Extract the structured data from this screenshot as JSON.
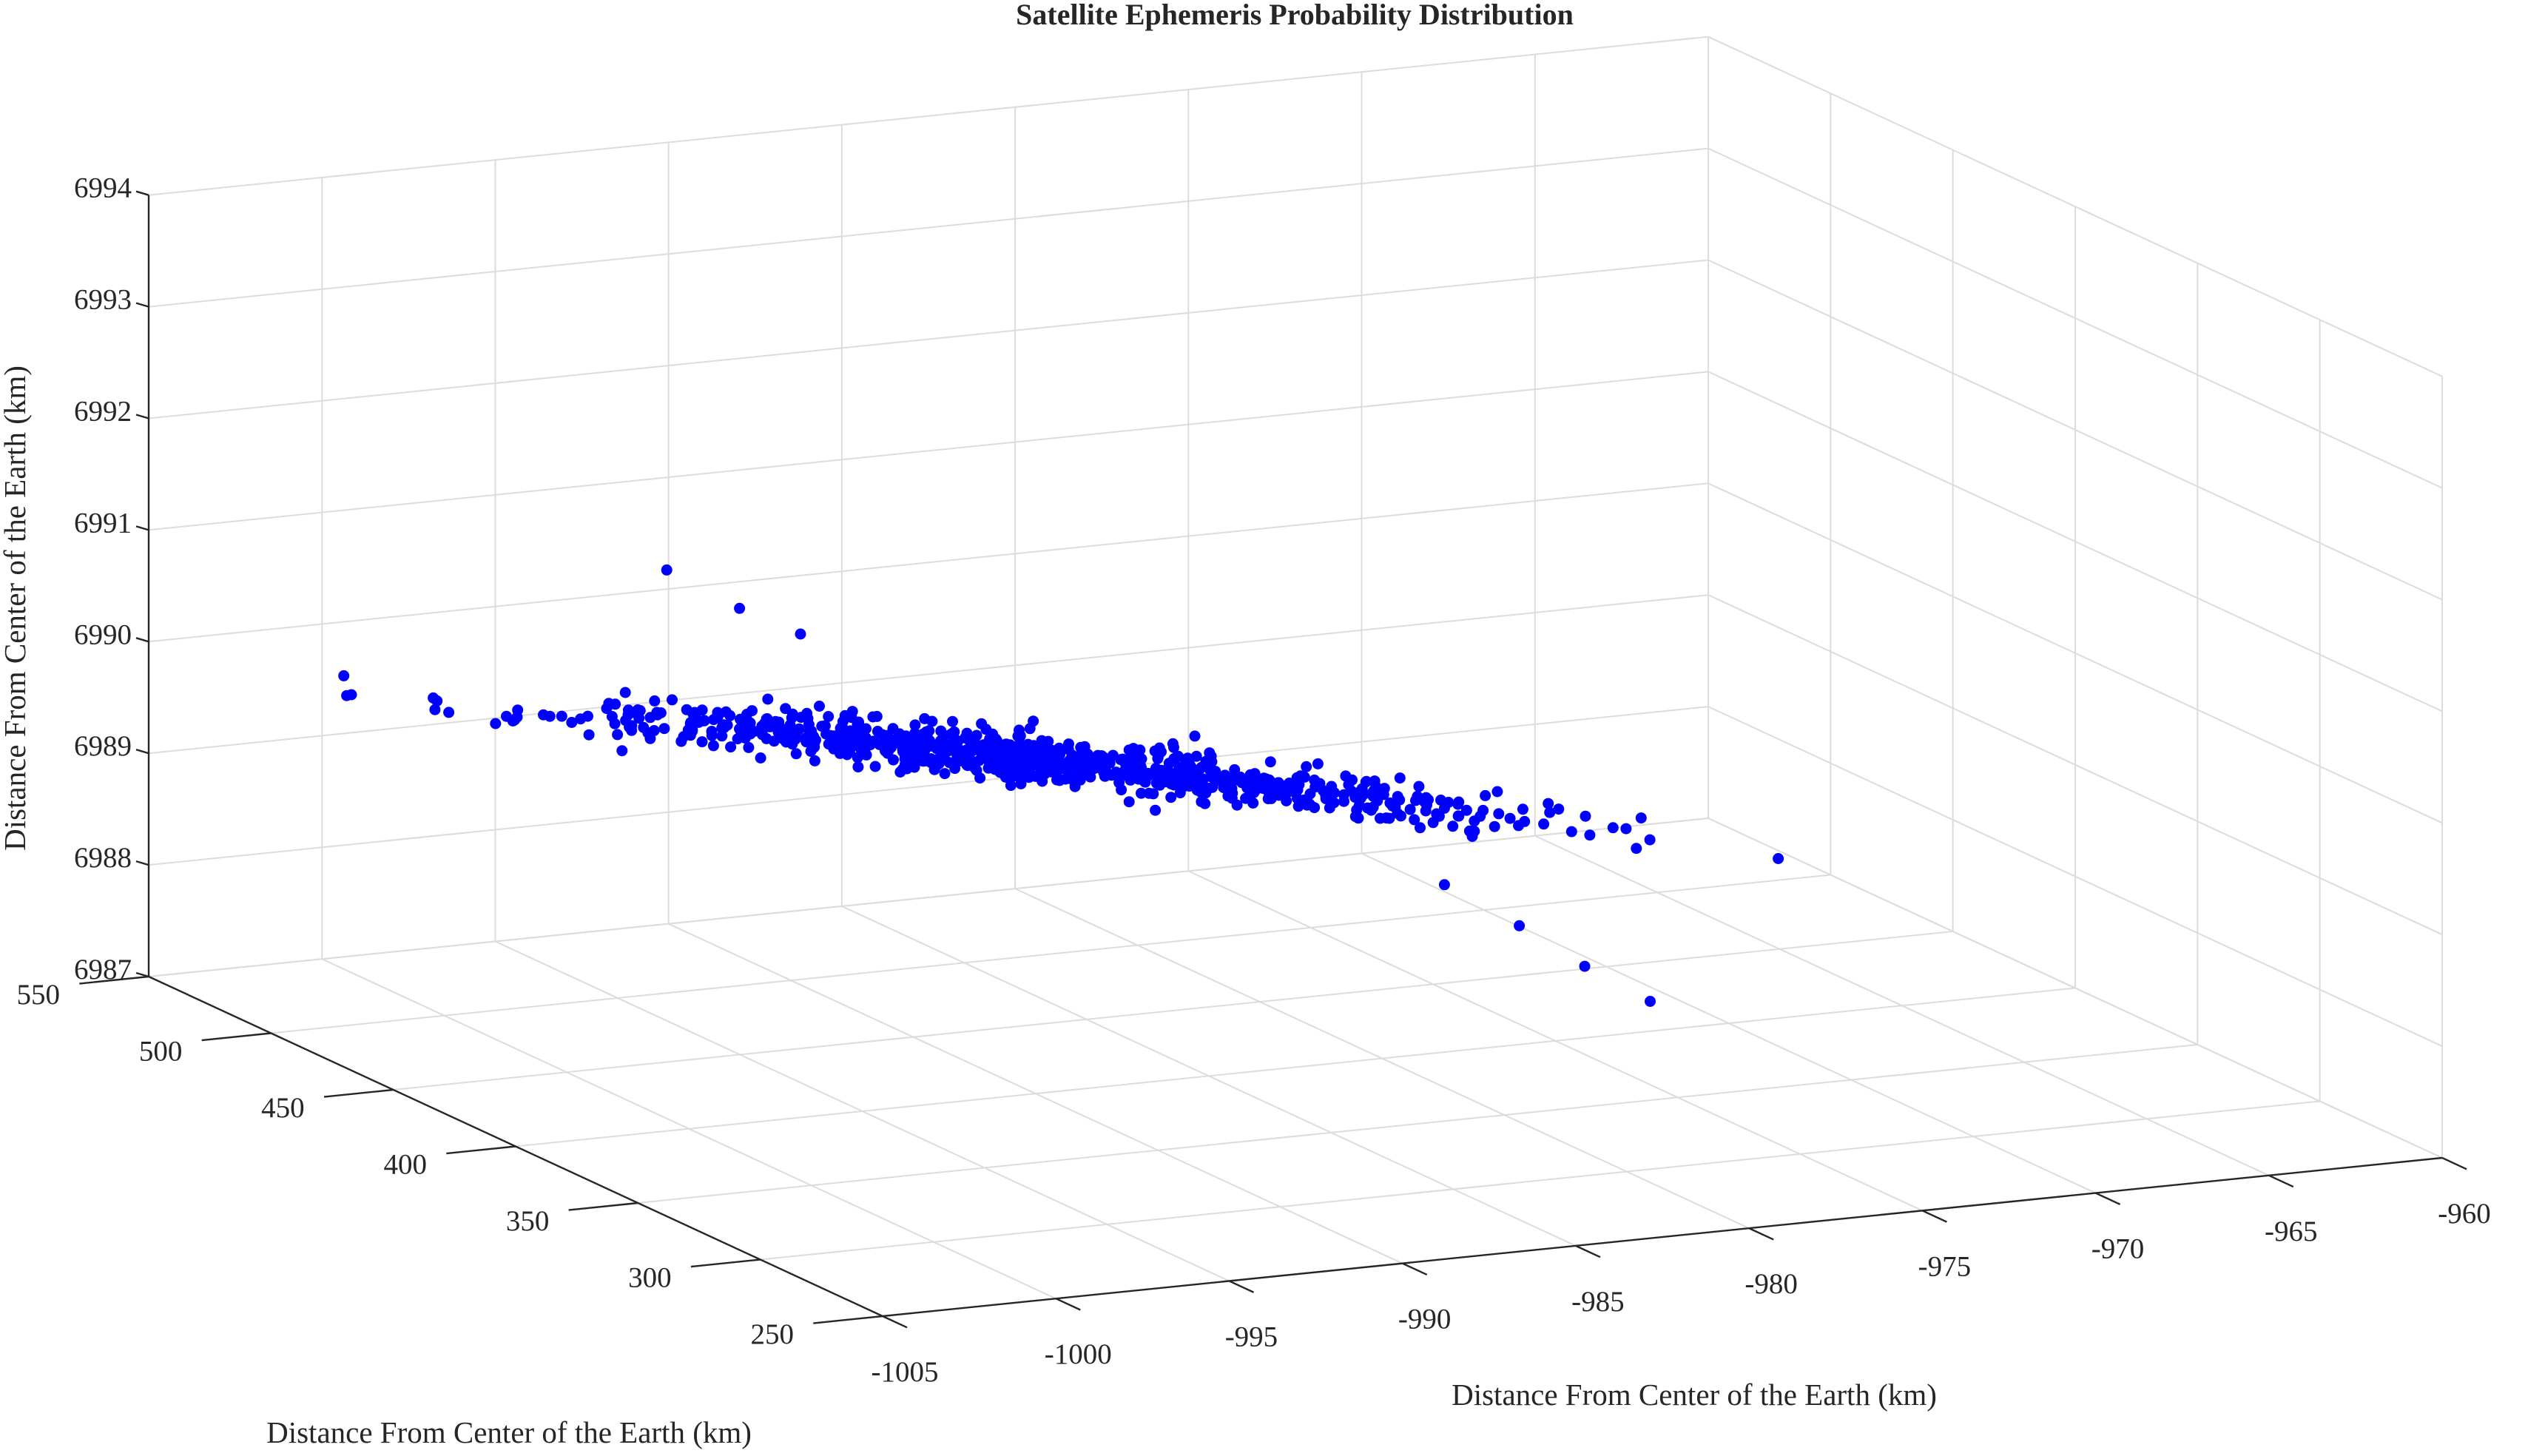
{
  "chart_data": {
    "type": "scatter",
    "title": "Satellite Ephemeris Probability Distribution",
    "xlabel": "Distance From Center of the Earth (km)",
    "ylabel": "Distance From Center of the Earth (km)",
    "zlabel": "Distance From Center of the Earth (km)",
    "xlim": [
      -1005,
      -960
    ],
    "ylim": [
      250,
      550
    ],
    "zlim": [
      6987,
      6994
    ],
    "xticks": [
      "-1005",
      "-1000",
      "-995",
      "-990",
      "-985",
      "-980",
      "-975",
      "-970",
      "-965",
      "-960"
    ],
    "yticks": [
      "250",
      "300",
      "350",
      "400",
      "450",
      "500",
      "550"
    ],
    "zticks": [
      "6987",
      "6988",
      "6989",
      "6990",
      "6991",
      "6992",
      "6993",
      "6994"
    ],
    "grid": true,
    "marker_color": "#0000ff",
    "distribution": {
      "point_count": 900,
      "seed": 7,
      "mean": [
        -990.0,
        400.0,
        6990.0
      ],
      "principal_axis": [
        13.5,
        -84.0,
        -0.25
      ],
      "principal_sigma": 0.36,
      "sigma_y": 5.5,
      "sigma_z": 0.09,
      "curvature_z": -0.12
    },
    "outliers": [
      {
        "x": -994.5,
        "y": 487.0,
        "z": 6990.95
      },
      {
        "x": -993.6,
        "y": 470.0,
        "z": 6990.75
      },
      {
        "x": -992.9,
        "y": 455.0,
        "z": 6990.65
      },
      {
        "x": -984.2,
        "y": 315.0,
        "z": 6989.55
      },
      {
        "x": -983.1,
        "y": 300.0,
        "z": 6989.3
      },
      {
        "x": -982.2,
        "y": 286.0,
        "z": 6989.05
      },
      {
        "x": -981.3,
        "y": 272.0,
        "z": 6988.85
      }
    ]
  }
}
